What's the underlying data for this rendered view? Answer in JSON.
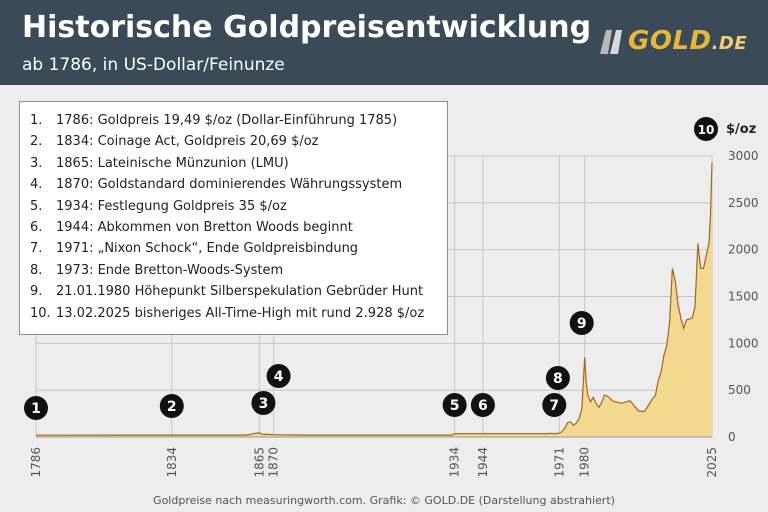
{
  "header": {
    "title": "Historische Goldpreisentwicklung",
    "subtitle": "ab 1786, in US-Dollar/Feinunze",
    "logo_text": "GOLD",
    "logo_suffix": ".DE"
  },
  "legend": {
    "items": [
      {
        "num": "1.",
        "text": "1786: Goldpreis 19,49 $/oz (Dollar-Einführung 1785)"
      },
      {
        "num": "2.",
        "text": "1834: Coinage Act, Goldpreis 20,69 $/oz"
      },
      {
        "num": "3.",
        "text": "1865: Lateinische Münzunion (LMU)"
      },
      {
        "num": "4.",
        "text": "1870: Goldstandard dominierendes Währungssystem"
      },
      {
        "num": "5.",
        "text": "1934: Festlegung Goldpreis 35 $/oz"
      },
      {
        "num": "6.",
        "text": "1944: Abkommen von Bretton Woods beginnt"
      },
      {
        "num": "7.",
        "text": "1971: „Nixon Schock“, Ende Goldpreisbindung"
      },
      {
        "num": "8.",
        "text": "1973: Ende Bretton-Woods-System"
      },
      {
        "num": "9.",
        "text": "21.01.1980 Höhepunkt Silberspekulation Gebrüder Hunt"
      },
      {
        "num": "10.",
        "text": "13.02.2025 bisheriges All-Time-High mit rund 2.928 $/oz"
      }
    ]
  },
  "footer": "Goldpreise nach measuringworth.com.  Grafik: © GOLD.DE (Darstellung abstrahiert)",
  "colors": {
    "header_bg": "#3a4a57",
    "page_bg": "#ededed",
    "area_fill": "#f3d98f",
    "line": "#a0661a",
    "marker": "#111111",
    "gold": "#e8b73a"
  },
  "chart_data": {
    "type": "area",
    "title": "Historische Goldpreisentwicklung",
    "subtitle": "ab 1786, in US-Dollar/Feinunze",
    "ylabel": "$/oz",
    "xlabel": "",
    "ylim": [
      0,
      3000
    ],
    "yticks": [
      "0",
      "500",
      "1000",
      "1500",
      "2000",
      "2500",
      "3000"
    ],
    "x_tick_labels": [
      "1786",
      "1834",
      "1865",
      "1870",
      "1934",
      "1944",
      "1971",
      "1980",
      "2025"
    ],
    "grid": true,
    "series": [
      {
        "x": [
          1786,
          1834,
          1850,
          1860,
          1862,
          1864,
          1865,
          1866,
          1867,
          1868,
          1870,
          1872,
          1873,
          1879,
          1880,
          1900,
          1920,
          1933,
          1934,
          1944,
          1950,
          1960,
          1967,
          1968,
          1970,
          1971,
          1972,
          1973,
          1974,
          1975,
          1976,
          1977,
          1978,
          1979,
          1980,
          1980.5,
          1981,
          1982,
          1983,
          1984,
          1985,
          1986,
          1987,
          1988,
          1990,
          1993,
          1996,
          1999,
          2001,
          2002,
          2003,
          2004,
          2005,
          2006,
          2007,
          2008,
          2009,
          2010,
          2011,
          2012,
          2013,
          2014,
          2015,
          2016,
          2018,
          2019,
          2020,
          2021,
          2022,
          2023,
          2023.8,
          2024,
          2024.5,
          2025
        ],
        "y": [
          19.49,
          20.69,
          20.67,
          20.67,
          29,
          42,
          44,
          30,
          28,
          28,
          25,
          23,
          22,
          21,
          20.67,
          20.67,
          20.67,
          20.67,
          35,
          35,
          35,
          35,
          35,
          39,
          36,
          41,
          58,
          97,
          154,
          161,
          125,
          148,
          193,
          306,
          850,
          600,
          460,
          376,
          424,
          361,
          317,
          368,
          447,
          437,
          383,
          360,
          388,
          279,
          271,
          310,
          363,
          409,
          444,
          604,
          695,
          872,
          972,
          1225,
          1800,
          1669,
          1411,
          1266,
          1160,
          1250,
          1268,
          1393,
          2067,
          1800,
          1800,
          1940,
          2050,
          2100,
          2400,
          2928
        ]
      }
    ],
    "annotations": [
      {
        "label": "1",
        "year": 1786
      },
      {
        "label": "2",
        "year": 1834
      },
      {
        "label": "3",
        "year": 1865
      },
      {
        "label": "4",
        "year": 1870
      },
      {
        "label": "5",
        "year": 1934
      },
      {
        "label": "6",
        "year": 1944
      },
      {
        "label": "7",
        "year": 1971
      },
      {
        "label": "8",
        "year": 1973
      },
      {
        "label": "9",
        "year": 1980
      },
      {
        "label": "10",
        "year": 2025
      }
    ]
  }
}
